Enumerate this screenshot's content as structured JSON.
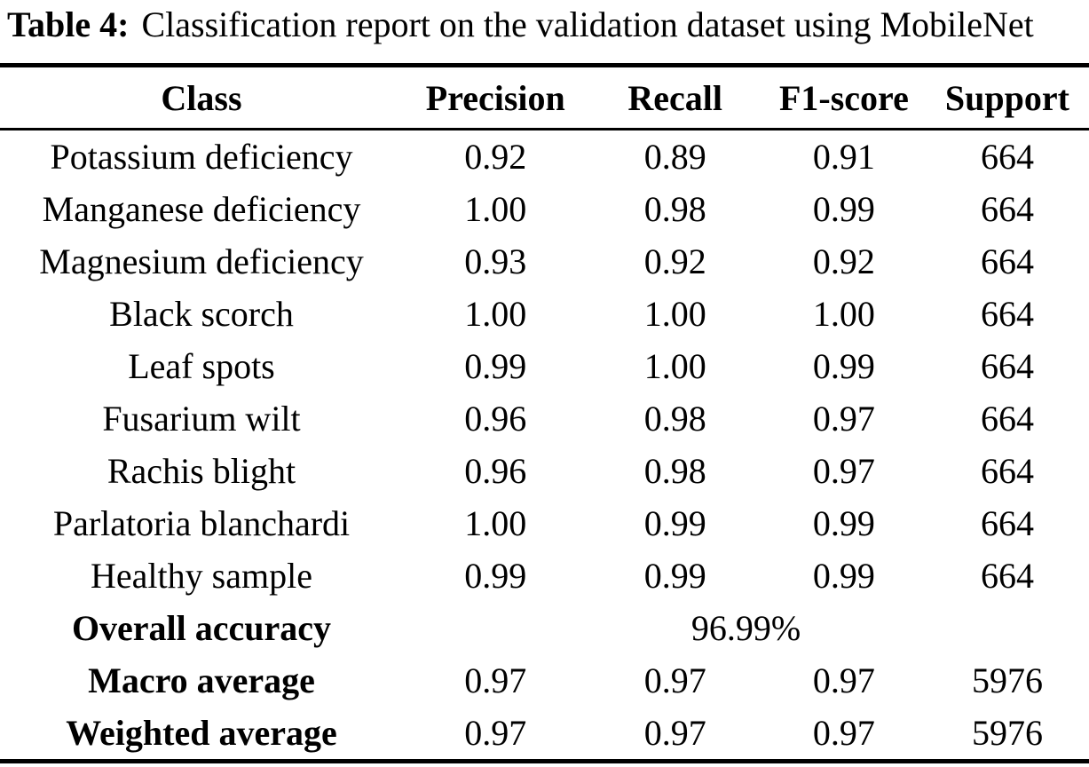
{
  "caption": {
    "label": "Table 4:",
    "text": "Classification report on the validation dataset using MobileNet"
  },
  "table": {
    "columns": [
      "Class",
      "Precision",
      "Recall",
      "F1-score",
      "Support"
    ],
    "rows": [
      [
        "Potassium deficiency",
        "0.92",
        "0.89",
        "0.91",
        "664"
      ],
      [
        "Manganese deficiency",
        "1.00",
        "0.98",
        "0.99",
        "664"
      ],
      [
        "Magnesium deficiency",
        "0.93",
        "0.92",
        "0.92",
        "664"
      ],
      [
        "Black scorch",
        "1.00",
        "1.00",
        "1.00",
        "664"
      ],
      [
        "Leaf spots",
        "0.99",
        "1.00",
        "0.99",
        "664"
      ],
      [
        "Fusarium wilt",
        "0.96",
        "0.98",
        "0.97",
        "664"
      ],
      [
        "Rachis blight",
        "0.96",
        "0.98",
        "0.97",
        "664"
      ],
      [
        "Parlatoria blanchardi",
        "1.00",
        "0.99",
        "0.99",
        "664"
      ],
      [
        "Healthy sample",
        "0.99",
        "0.99",
        "0.99",
        "664"
      ]
    ],
    "overall_accuracy": {
      "label": "Overall accuracy",
      "value": "96.99%"
    },
    "summary_rows": [
      [
        "Macro average",
        "0.97",
        "0.97",
        "0.97",
        "5976"
      ],
      [
        "Weighted average",
        "0.97",
        "0.97",
        "0.97",
        "5976"
      ]
    ]
  },
  "colors": {
    "text": "#000000",
    "background": "#ffffff",
    "rule": "#000000"
  }
}
